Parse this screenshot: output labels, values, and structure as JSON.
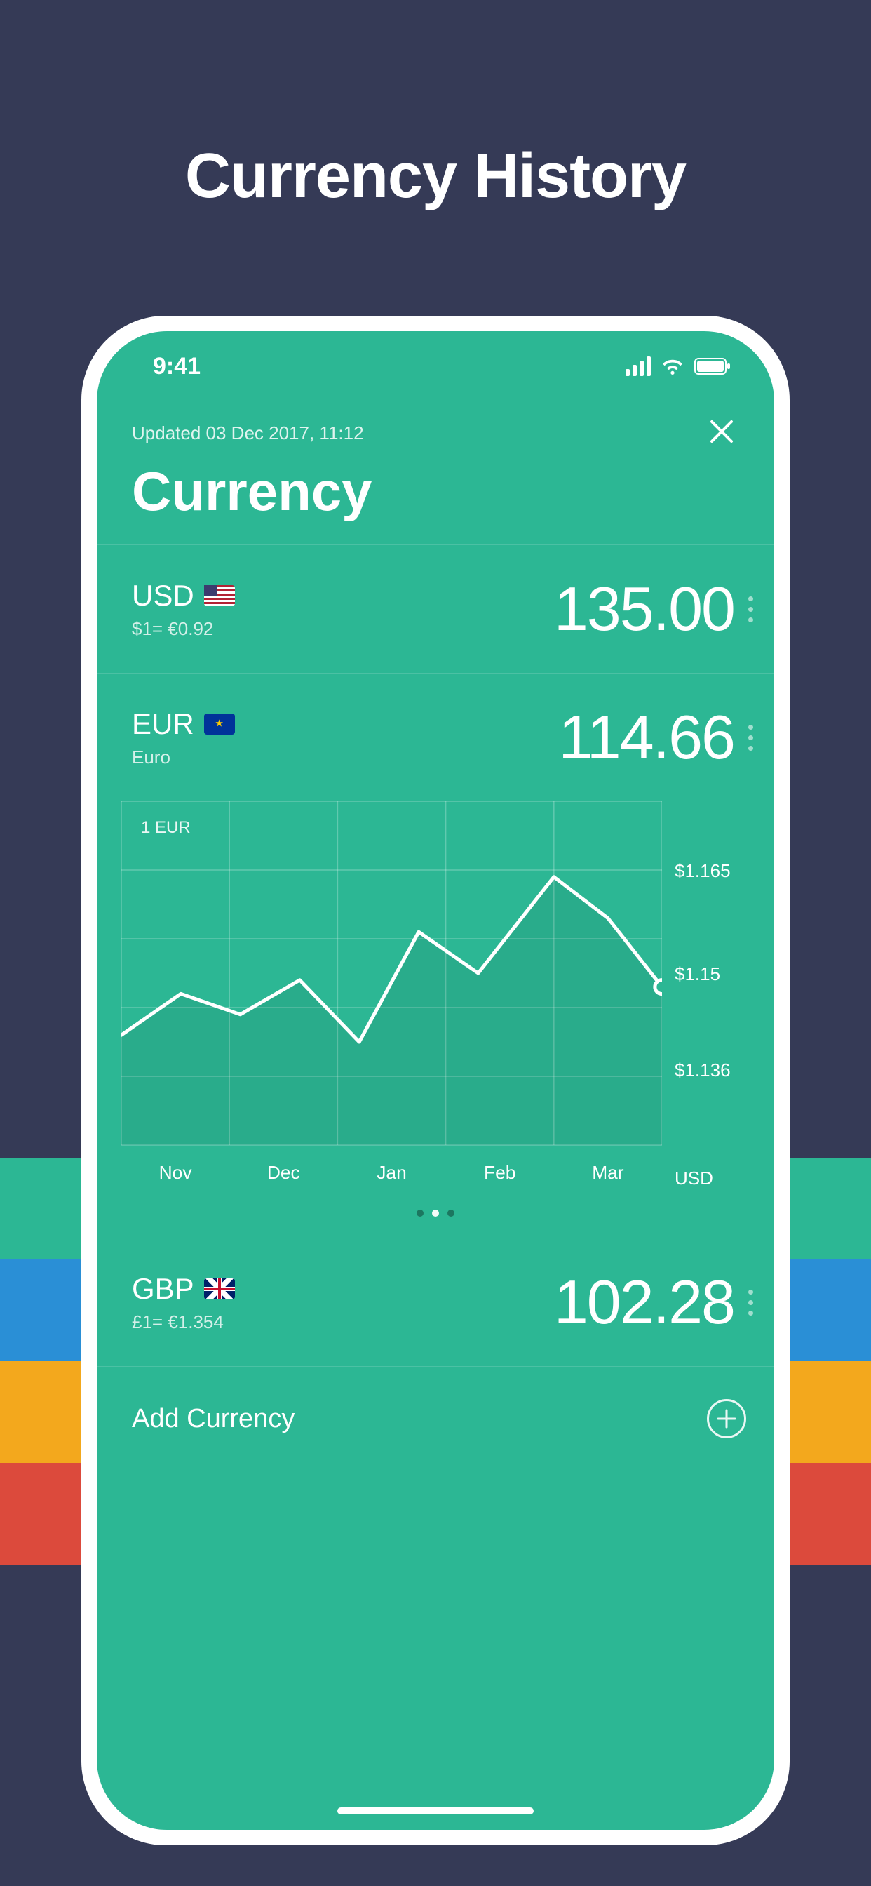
{
  "marketing": {
    "title": "Currency History"
  },
  "bg_stripes": [
    "#2cb794",
    "#2a8fd6",
    "#f3a81d",
    "#dc4a3c"
  ],
  "statusbar": {
    "time": "9:41"
  },
  "header": {
    "updated": "Updated 03 Dec 2017, 11:12",
    "title": "Currency"
  },
  "currencies": [
    {
      "code": "USD",
      "flag": "us",
      "sub": "$1= €0.92",
      "value": "135.00"
    },
    {
      "code": "EUR",
      "flag": "eu",
      "sub": "Euro",
      "value": "114.66"
    },
    {
      "code": "GBP",
      "flag": "uk",
      "sub": "£1= €1.354",
      "value": "102.28"
    }
  ],
  "chart": {
    "type": "line",
    "badge": "1 EUR",
    "x_labels": [
      "Nov",
      "Dec",
      "Jan",
      "Feb",
      "Mar"
    ],
    "y_ticks": [
      {
        "label": "$1.165",
        "value": 1.165
      },
      {
        "label": "$1.15",
        "value": 1.15
      },
      {
        "label": "$1.136",
        "value": 1.136
      }
    ],
    "y_axis_unit": "USD",
    "ylim": [
      1.125,
      1.175
    ],
    "points": [
      {
        "x": 0.0,
        "y": 1.141
      },
      {
        "x": 0.11,
        "y": 1.147
      },
      {
        "x": 0.22,
        "y": 1.144
      },
      {
        "x": 0.33,
        "y": 1.149
      },
      {
        "x": 0.44,
        "y": 1.14
      },
      {
        "x": 0.55,
        "y": 1.156
      },
      {
        "x": 0.66,
        "y": 1.15
      },
      {
        "x": 0.8,
        "y": 1.164
      },
      {
        "x": 0.9,
        "y": 1.158
      },
      {
        "x": 1.0,
        "y": 1.148
      }
    ],
    "marker_index": 9,
    "grid_rows": 5,
    "grid_cols": 5,
    "line_color": "#ffffff",
    "line_width": 5,
    "grid_color": "rgba(255,255,255,0.25)",
    "area_fill": "rgba(0,0,0,0.06)",
    "marker_stroke": "#ffffff",
    "marker_fill": "#2cb794",
    "marker_radius": 10,
    "label_fontsize": 26
  },
  "pager": {
    "count": 3,
    "active": 1
  },
  "add_currency": {
    "label": "Add Currency"
  },
  "colors": {
    "screen_bg": "#2cb794",
    "page_bg": "#353a56",
    "text": "#ffffff",
    "divider": "rgba(255,255,255,0.15)"
  }
}
